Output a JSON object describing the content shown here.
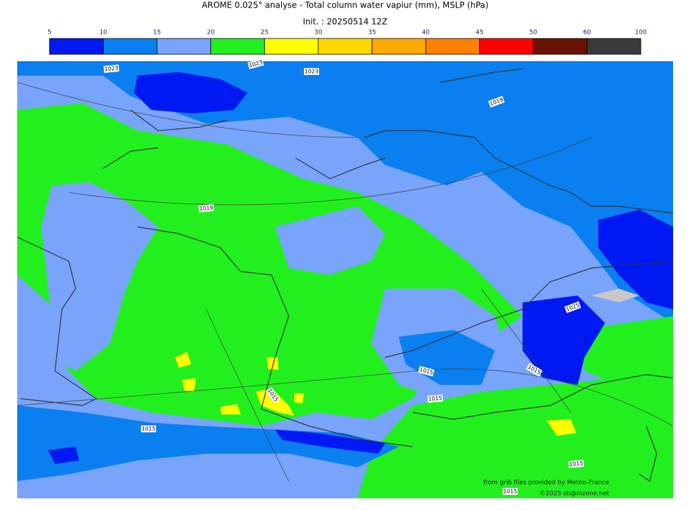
{
  "title": "AROME 0.025° analyse - Total column water vapiur (mm), MSLP (hPa)",
  "subtitle": "Init. : 20250514 12Z",
  "colorbar": {
    "ticks": [
      5,
      10,
      15,
      20,
      25,
      30,
      35,
      40,
      45,
      50,
      60,
      100
    ],
    "colors": [
      "#0018f2",
      "#0a7ff0",
      "#78a4fc",
      "#22f01e",
      "#ffff00",
      "#ffd700",
      "#ffaa00",
      "#ff7f00",
      "#ff0000",
      "#6b1206",
      "#3a3a3a"
    ]
  },
  "isobar_labels": [
    1023,
    1023,
    1023,
    1019,
    1019,
    1025,
    1015,
    1015,
    1015,
    1015,
    1015,
    1015,
    1015
  ],
  "credits": [
    "from grib files provided by Meteo-France",
    "©2025 sb@inzone.net"
  ]
}
